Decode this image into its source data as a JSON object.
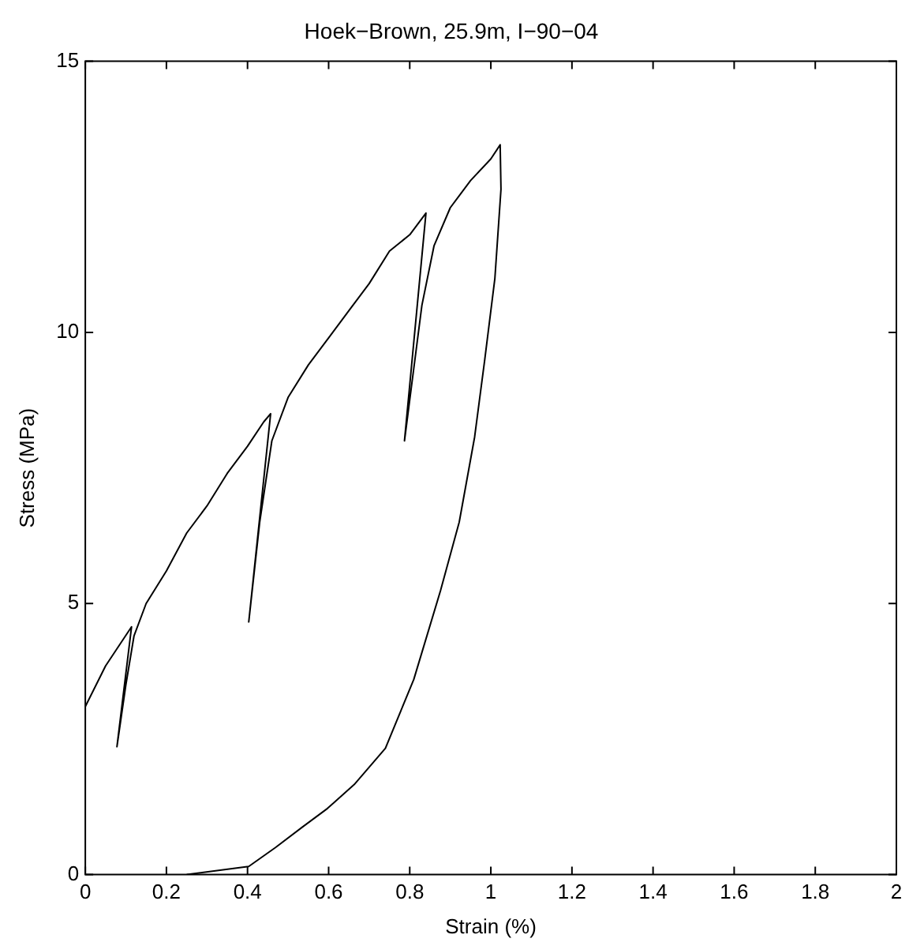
{
  "chart_data": {
    "type": "line",
    "title": "Hoek−Brown, 25.9m, I−90−04",
    "xlabel": "Strain (%)",
    "ylabel": "Stress (MPa)",
    "xlim": [
      0,
      2
    ],
    "xticks": [
      0,
      0.2,
      0.4,
      0.6,
      0.8,
      1,
      1.2,
      1.4,
      1.6,
      1.8,
      2
    ],
    "ylim": [
      0,
      15
    ],
    "yticks": [
      0,
      5,
      10,
      15
    ],
    "grid": false,
    "legend": false,
    "marker": "none",
    "line_style": "solid",
    "series": [
      {
        "color": "#000000",
        "x": [
          0,
          0.05,
          0.114,
          0.078,
          0.1,
          0.12,
          0.15,
          0.2,
          0.25,
          0.3,
          0.35,
          0.4,
          0.44,
          0.457,
          0.403,
          0.43,
          0.46,
          0.5,
          0.55,
          0.6,
          0.65,
          0.7,
          0.75,
          0.8,
          0.84,
          0.787,
          0.83,
          0.86,
          0.9,
          0.95,
          1.0,
          1.023,
          1.025,
          1.01,
          0.985,
          0.96,
          0.922,
          0.876,
          0.81,
          0.74,
          0.663,
          0.597,
          0.534,
          0.469,
          0.403,
          0.25
        ],
        "values": [
          3.1,
          3.85,
          4.57,
          2.36,
          3.5,
          4.4,
          5.0,
          5.6,
          6.3,
          6.8,
          7.4,
          7.9,
          8.35,
          8.5,
          4.66,
          6.5,
          8.0,
          8.8,
          9.4,
          9.9,
          10.4,
          10.9,
          11.5,
          11.8,
          12.2,
          8.0,
          10.5,
          11.6,
          12.3,
          12.8,
          13.2,
          13.46,
          12.64,
          11.0,
          9.5,
          8.07,
          6.5,
          5.24,
          3.6,
          2.33,
          1.66,
          1.22,
          0.87,
          0.5,
          0.15,
          0
        ]
      }
    ]
  }
}
